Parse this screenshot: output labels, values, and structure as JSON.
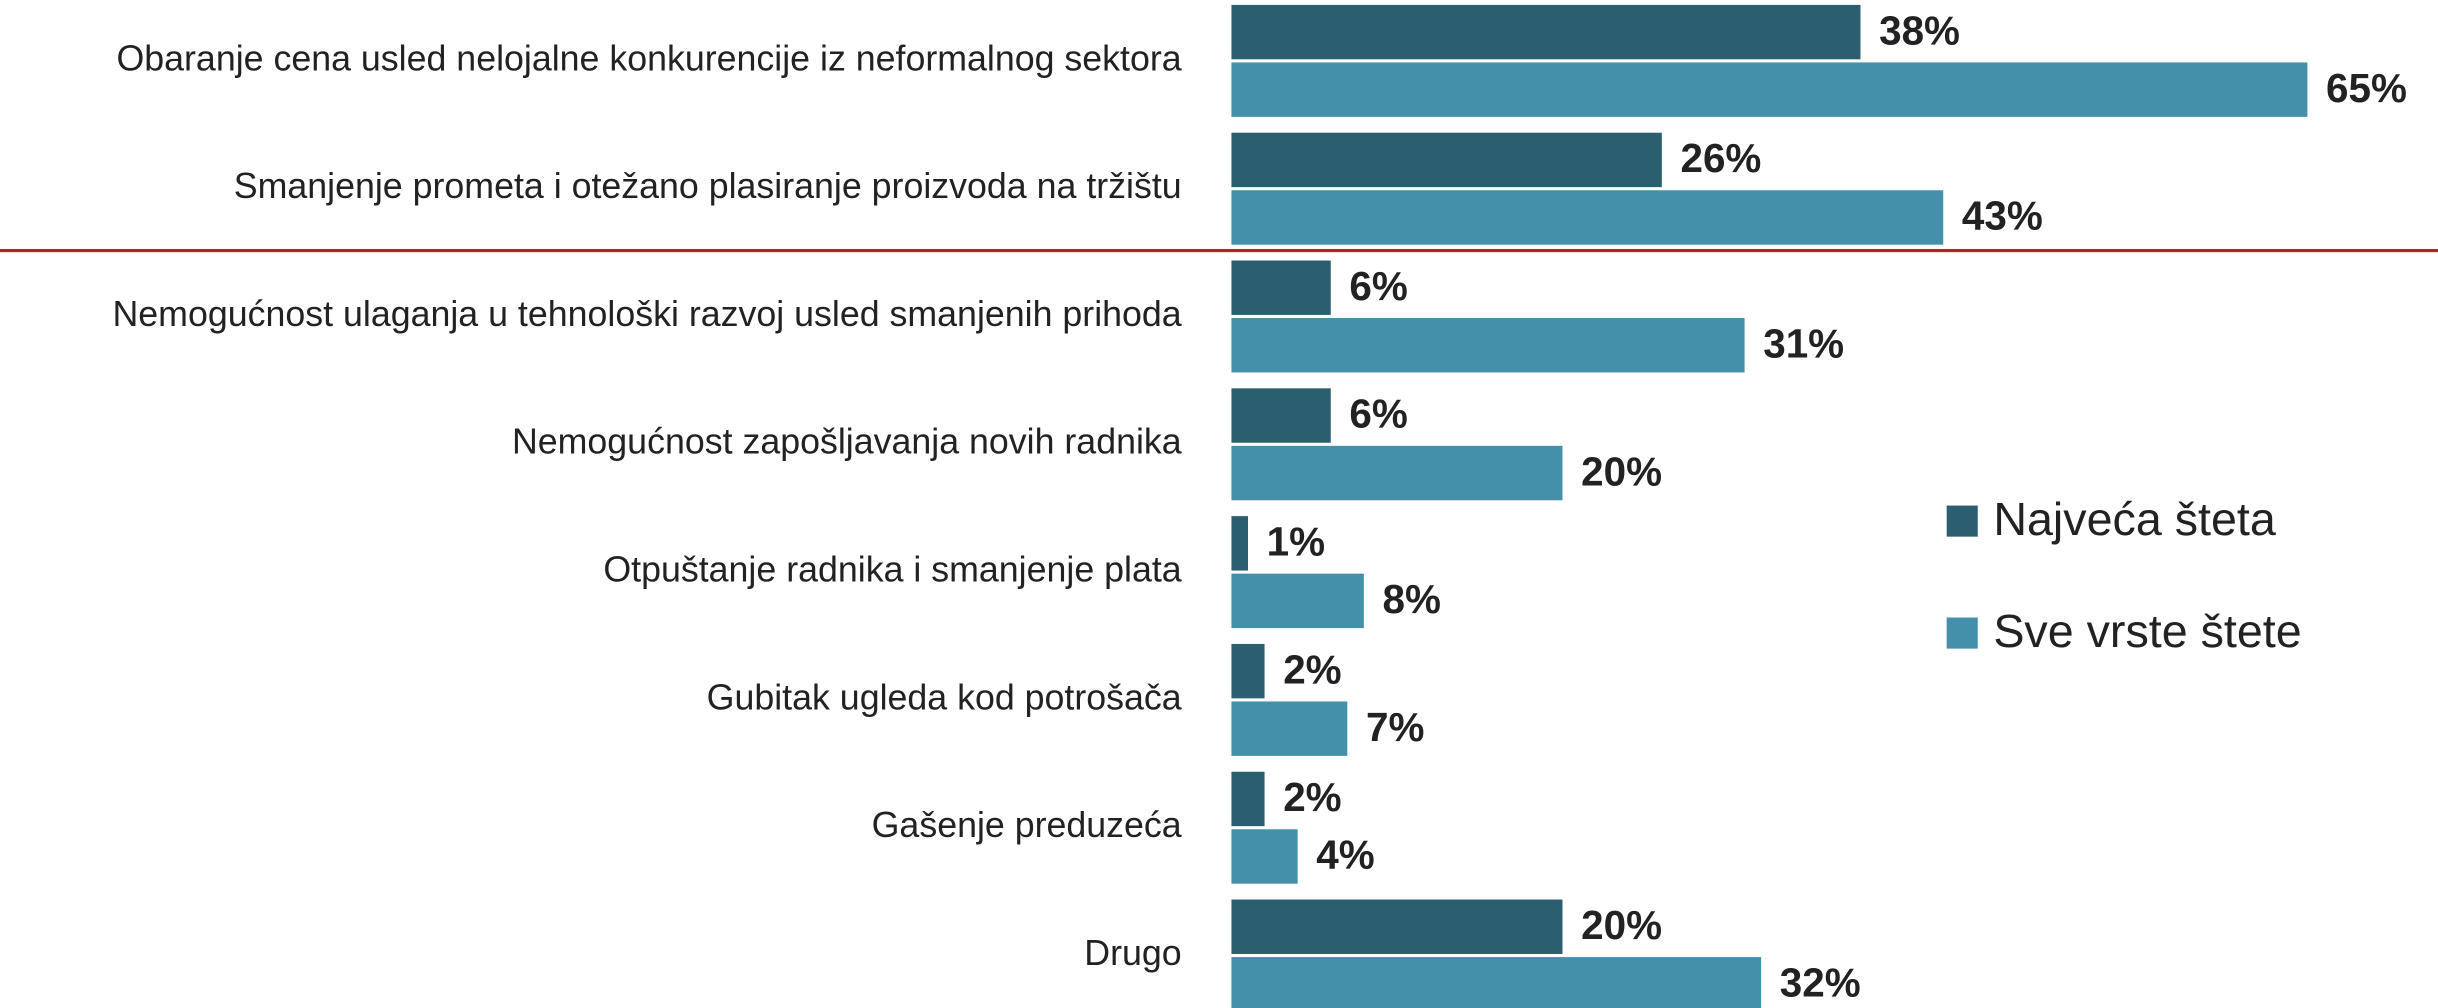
{
  "chart_data": {
    "type": "bar",
    "orientation": "horizontal",
    "categories": [
      "Obaranje cena usled nelojalne konkurencije iz neformalnog sektora",
      "Smanjenje prometa i otežano plasiranje proizvoda na tržištu",
      "Nemogućnost ulaganja u tehnološki razvoj usled smanjenih prihoda",
      "Nemogućnost zapošljavanja novih radnika",
      "Otpuštanje radnika i smanjenje plata",
      "Gubitak ugleda kod potrošača",
      "Gašenje preduzeća",
      "Drugo"
    ],
    "series": [
      {
        "name": "Najveća šteta",
        "color": "#2b5f70",
        "values": [
          38,
          26,
          6,
          6,
          1,
          2,
          2,
          20
        ],
        "value_labels": [
          "38%",
          "26%",
          "6%",
          "6%",
          "1%",
          "2%",
          "2%",
          "20%"
        ]
      },
      {
        "name": "Sve vrste štete",
        "color": "#4490ab",
        "values": [
          65,
          43,
          31,
          20,
          8,
          7,
          4,
          32
        ],
        "value_labels": [
          "65%",
          "43%",
          "31%",
          "20%",
          "8%",
          "7%",
          "4%",
          "32%"
        ]
      }
    ],
    "legend": "right"
  }
}
